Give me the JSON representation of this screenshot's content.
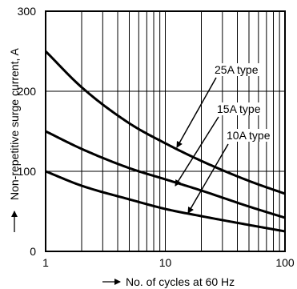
{
  "chart_data": {
    "type": "line",
    "xlabel": "No. of cycles at 60 Hz",
    "ylabel": "Non-repetitive surge current, A",
    "x_scale": "log",
    "xlim": [
      1,
      100
    ],
    "ylim": [
      0,
      300
    ],
    "x_ticks": [
      "1",
      "10",
      "100"
    ],
    "y_ticks": [
      "0",
      "100",
      "200",
      "300"
    ],
    "grid": true,
    "series": [
      {
        "name": "25A type",
        "x": [
          1,
          2,
          5,
          10,
          20,
          50,
          100
        ],
        "y": [
          250,
          205,
          160,
          135,
          113,
          88,
          72
        ]
      },
      {
        "name": "15A type",
        "x": [
          1,
          2,
          5,
          10,
          20,
          50,
          100
        ],
        "y": [
          150,
          128,
          104,
          90,
          76,
          56,
          42
        ]
      },
      {
        "name": "10A type",
        "x": [
          1,
          2,
          5,
          10,
          20,
          50,
          100
        ],
        "y": [
          100,
          82,
          65,
          53,
          44,
          33,
          25
        ]
      }
    ],
    "annotations": [
      {
        "text": "25A type",
        "series": "25A type"
      },
      {
        "text": "15A type",
        "series": "15A type"
      },
      {
        "text": "10A type",
        "series": "10A type"
      }
    ]
  }
}
